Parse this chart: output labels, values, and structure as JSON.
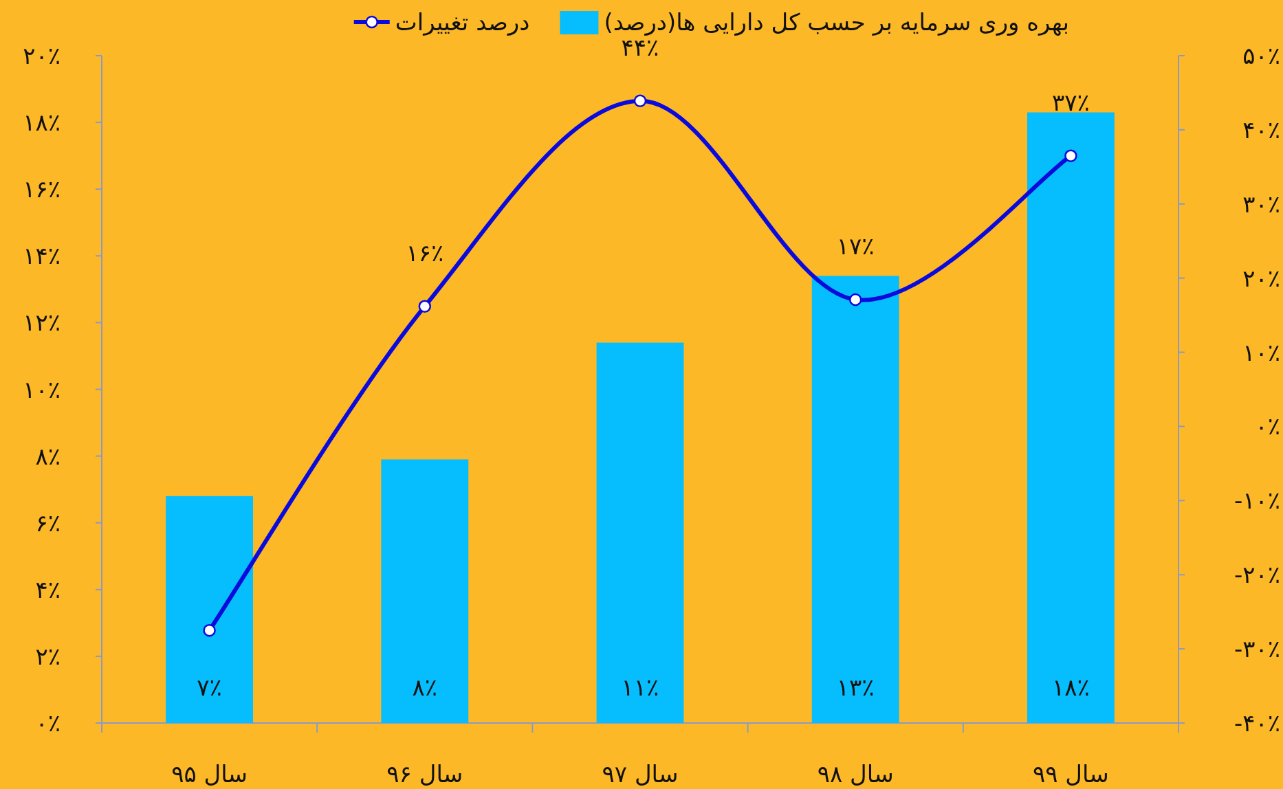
{
  "chart_data": {
    "type": "bar",
    "categories": [
      "سال ۹۵",
      "سال ۹۶",
      "سال ۹۷",
      "سال ۹۸",
      "سال ۹۹"
    ],
    "series": [
      {
        "name": "بهره وری سرمایه بر حسب کل دارایی ها(درصد)",
        "color": "#06bdfd",
        "values": [
          6.8,
          7.9,
          11.4,
          13.4,
          18.3
        ],
        "value_labels": [
          "۷٪",
          "۸٪",
          "۱۱٪",
          "۱۳٪",
          "۱۸٪"
        ]
      },
      {
        "name": "درصد تغییرات",
        "type": "line",
        "axis": "y2",
        "color": "#0a0adc",
        "marker": "circle",
        "values": [
          -27.5,
          16.2,
          43.9,
          17.1,
          36.5
        ],
        "value_labels": [
          null,
          "۱۶٪",
          "۴۴٪",
          "۱۷٪",
          "۳۷٪"
        ]
      }
    ],
    "ylim": [
      0,
      20
    ],
    "yticks": [
      {
        "value": 0,
        "label": "۰٪"
      },
      {
        "value": 2,
        "label": "۲٪"
      },
      {
        "value": 4,
        "label": "۴٪"
      },
      {
        "value": 6,
        "label": "۶٪"
      },
      {
        "value": 8,
        "label": "۸٪"
      },
      {
        "value": 10,
        "label": "۱۰٪"
      },
      {
        "value": 12,
        "label": "۱۲٪"
      },
      {
        "value": 14,
        "label": "۱۴٪"
      },
      {
        "value": 16,
        "label": "۱۶٪"
      },
      {
        "value": 18,
        "label": "۱۸٪"
      },
      {
        "value": 20,
        "label": "۲۰٪"
      }
    ],
    "y2lim": [
      -40,
      50
    ],
    "y2ticks": [
      {
        "value": -40,
        "label": "-۴۰٪"
      },
      {
        "value": -30,
        "label": "-۳۰٪"
      },
      {
        "value": -20,
        "label": "-۲۰٪"
      },
      {
        "value": -10,
        "label": "-۱۰٪"
      },
      {
        "value": 0,
        "label": "۰٪"
      },
      {
        "value": 10,
        "label": "۱۰٪"
      },
      {
        "value": 20,
        "label": "۲۰٪"
      },
      {
        "value": 30,
        "label": "۳۰٪"
      },
      {
        "value": 40,
        "label": "۴۰٪"
      },
      {
        "value": 50,
        "label": "۵۰٪"
      }
    ],
    "legend": "top",
    "grid": false
  }
}
